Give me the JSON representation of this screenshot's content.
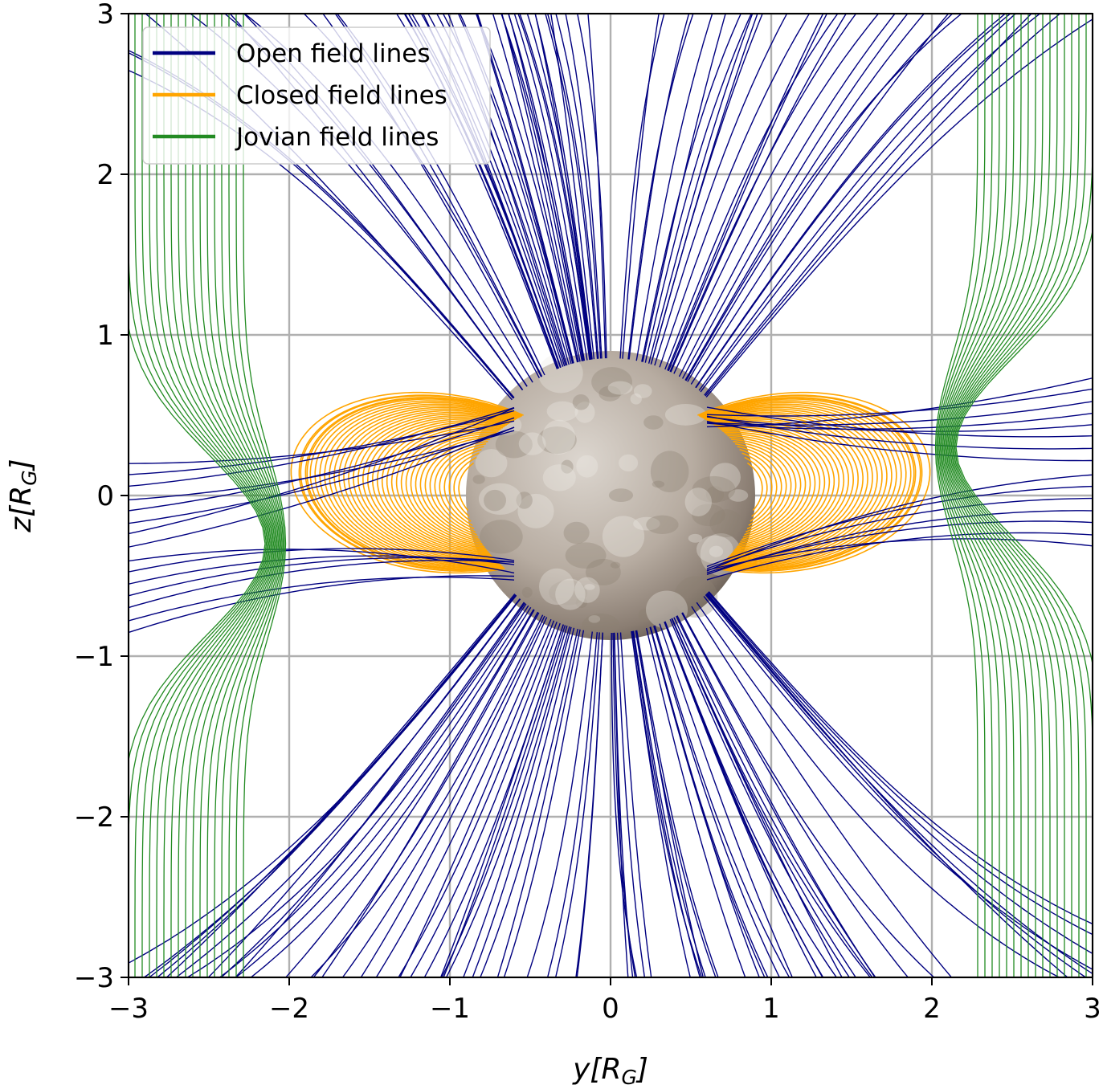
{
  "chart_data": {
    "type": "line",
    "xlabel": "y[R_G]",
    "ylabel": "z[R_G]",
    "xlim": [
      -3,
      3
    ],
    "ylim": [
      -3,
      3
    ],
    "xticks": [
      "−3",
      "−2",
      "−1",
      "0",
      "1",
      "2",
      "3"
    ],
    "yticks": [
      "−3",
      "−2",
      "−1",
      "0",
      "1",
      "2",
      "3"
    ],
    "grid": true,
    "legend_position": "top-left",
    "series": [
      {
        "name": "Open field lines",
        "color": "#000080"
      },
      {
        "name": "Closed field lines",
        "color": "#ffa500"
      },
      {
        "name": "Jovian field lines",
        "color": "#228b22"
      }
    ],
    "moon": {
      "center": [
        0,
        0
      ],
      "radius": 0.9
    }
  }
}
